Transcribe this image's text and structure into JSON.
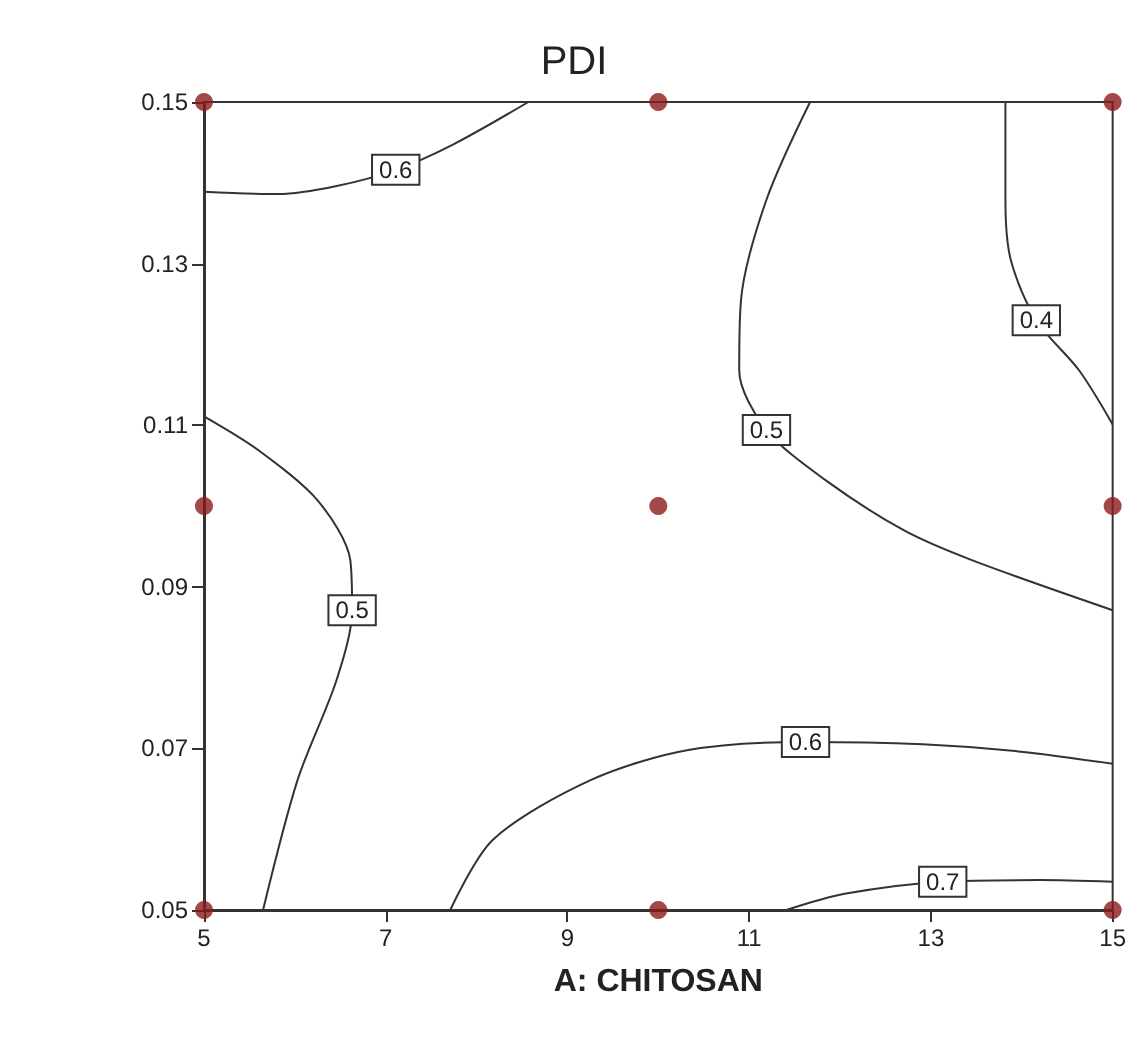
{
  "chart_data": {
    "type": "line",
    "title": "PDI",
    "xlabel": "A: CHITOSAN",
    "xlim": [
      5,
      15
    ],
    "xticks": [
      5,
      7,
      9,
      11,
      13,
      15
    ],
    "ylim": [
      0.05,
      0.15
    ],
    "yticks": [
      0.05,
      0.07,
      0.09,
      0.11,
      0.13,
      0.15
    ],
    "grid": false,
    "legend": false,
    "line_style": "solid",
    "series": [
      {
        "name": "0.6",
        "color": "#333333",
        "marker": "none",
        "x": [
          5,
          5.82,
          6.46,
          7.11,
          7.75,
          8.57
        ],
        "values": [
          0.1389,
          0.1386,
          0.1396,
          0.1416,
          0.1448,
          0.15
        ]
      },
      {
        "name": "0.5",
        "color": "#333333",
        "marker": "none",
        "x": [
          11.67,
          11.19,
          10.91,
          10.89,
          11.19,
          11.84,
          12.7,
          13.45,
          15
        ],
        "values": [
          0.15,
          0.1379,
          0.1255,
          0.1168,
          0.1094,
          0.1032,
          0.097,
          0.0933,
          0.0871
        ]
      },
      {
        "name": "0.4",
        "color": "#333333",
        "marker": "none",
        "x": [
          13.82,
          13.82,
          13.88,
          14.16,
          14.63,
          15
        ],
        "values": [
          0.15,
          0.1379,
          0.1304,
          0.123,
          0.1168,
          0.1101
        ]
      },
      {
        "name": "0.5",
        "color": "#333333",
        "marker": "none",
        "x": [
          5,
          5.6,
          6.25,
          6.61,
          6.63,
          6.46,
          6.03,
          5.65
        ],
        "values": [
          0.1111,
          0.1069,
          0.1007,
          0.0933,
          0.0871,
          0.0785,
          0.0661,
          0.05
        ]
      },
      {
        "name": "0.6",
        "color": "#333333",
        "marker": "none",
        "x": [
          7.71,
          8.18,
          9.26,
          10.33,
          11.62,
          12.91,
          13.99,
          15
        ],
        "values": [
          0.05,
          0.0587,
          0.0661,
          0.0698,
          0.0708,
          0.0705,
          0.0696,
          0.0681
        ]
      },
      {
        "name": "0.7",
        "color": "#333333",
        "marker": "none",
        "x": [
          11.41,
          12.05,
          13.13,
          14.2,
          15
        ],
        "values": [
          0.05,
          0.052,
          0.0535,
          0.0537,
          0.0535
        ]
      },
      {
        "type": "scatter",
        "color": "#8b1a1a",
        "marker": "circle",
        "x": [
          5,
          5,
          5,
          10,
          10,
          10,
          15,
          15,
          15
        ],
        "values": [
          0.05,
          0.1,
          0.15,
          0.05,
          0.1,
          0.15,
          0.05,
          0.1,
          0.15
        ]
      }
    ]
  }
}
